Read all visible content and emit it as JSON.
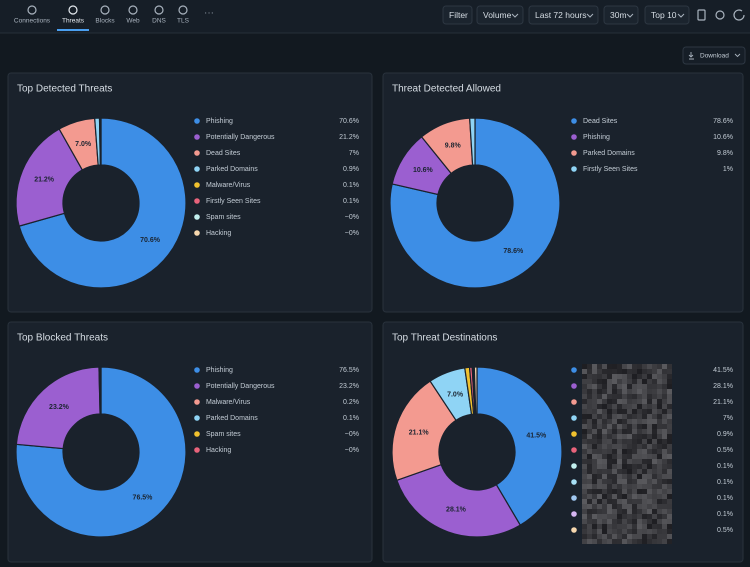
{
  "nav": {
    "tabs": [
      "Connections",
      "Threats",
      "Blocks",
      "Web",
      "DNS",
      "TLS"
    ],
    "active": 1
  },
  "toolbar": {
    "buttons": [
      "Filter",
      "Volume",
      "Last 72 hours",
      "30m",
      "Top 10"
    ],
    "download": "Download"
  },
  "chart_data": [
    {
      "type": "donut",
      "title": "Top Detected Threats",
      "categories": [
        "Phishing",
        "Potentially Dangerous",
        "Dead Sites",
        "Parked Domains",
        "Malware/Virus",
        "Firstly Seen Sites",
        "Spam sites",
        "Hacking"
      ],
      "values": [
        70.6,
        21.2,
        7,
        0.9,
        0.1,
        0.1,
        0.04,
        0.04
      ],
      "value_labels": [
        "70.6%",
        "21.2%",
        "7%",
        "0.9%",
        "0.1%",
        "0.1%",
        "~0%",
        "~0%"
      ],
      "slice_labels": [
        "70.6%",
        "21.2%",
        "7.0%",
        null,
        null,
        null,
        null,
        null
      ],
      "colors": [
        "#3d8ee6",
        "#9b5fd0",
        "#f39a90",
        "#8fd4f5",
        "#f0c12e",
        "#e8637b",
        "#c2f0ee",
        "#f6d7ae"
      ]
    },
    {
      "type": "donut",
      "title": "Threat Detected Allowed",
      "categories": [
        "Dead Sites",
        "Phishing",
        "Parked Domains",
        "Firstly Seen Sites"
      ],
      "values": [
        78.6,
        10.6,
        9.8,
        1
      ],
      "value_labels": [
        "78.6%",
        "10.6%",
        "9.8%",
        "1%"
      ],
      "slice_labels": [
        "78.6%",
        "10.6%",
        "9.8%",
        null
      ],
      "colors": [
        "#3d8ee6",
        "#9b5fd0",
        "#f39a90",
        "#8fd4f5"
      ]
    },
    {
      "type": "donut",
      "title": "Top Blocked Threats",
      "categories": [
        "Phishing",
        "Potentially Dangerous",
        "Malware/Virus",
        "Parked Domains",
        "Spam sites",
        "Hacking"
      ],
      "values": [
        76.5,
        23.2,
        0.2,
        0.1,
        0.04,
        0.04
      ],
      "value_labels": [
        "76.5%",
        "23.2%",
        "0.2%",
        "0.1%",
        "~0%",
        "~0%"
      ],
      "slice_labels": [
        "76.5%",
        "23.2%",
        null,
        null,
        null,
        null
      ],
      "colors": [
        "#3d8ee6",
        "#9b5fd0",
        "#f39a90",
        "#8fd4f5",
        "#f0c12e",
        "#e8637b"
      ]
    },
    {
      "type": "donut",
      "title": "Top Threat Destinations",
      "categories": [
        null,
        null,
        null,
        null,
        null,
        null,
        null,
        null,
        null,
        null,
        null
      ],
      "values": [
        41.5,
        28.1,
        21.1,
        7,
        0.9,
        0.5,
        0.1,
        0.1,
        0.1,
        0.1,
        0.5
      ],
      "value_labels": [
        "41.5%",
        "28.1%",
        "21.1%",
        "7%",
        "0.9%",
        "0.5%",
        "0.1%",
        "0.1%",
        "0.1%",
        "0.1%",
        "0.5%"
      ],
      "slice_labels": [
        "41.5%",
        "28.1%",
        "21.1%",
        "7.0%",
        null,
        null,
        null,
        null,
        null,
        null,
        null
      ],
      "colors": [
        "#3d8ee6",
        "#9b5fd0",
        "#f39a90",
        "#8fd4f5",
        "#f0c12e",
        "#e8637b",
        "#c2f0ee",
        "#a7e0f5",
        "#9fc7f0",
        "#d7b6f2",
        "#f6d7ae"
      ]
    }
  ]
}
